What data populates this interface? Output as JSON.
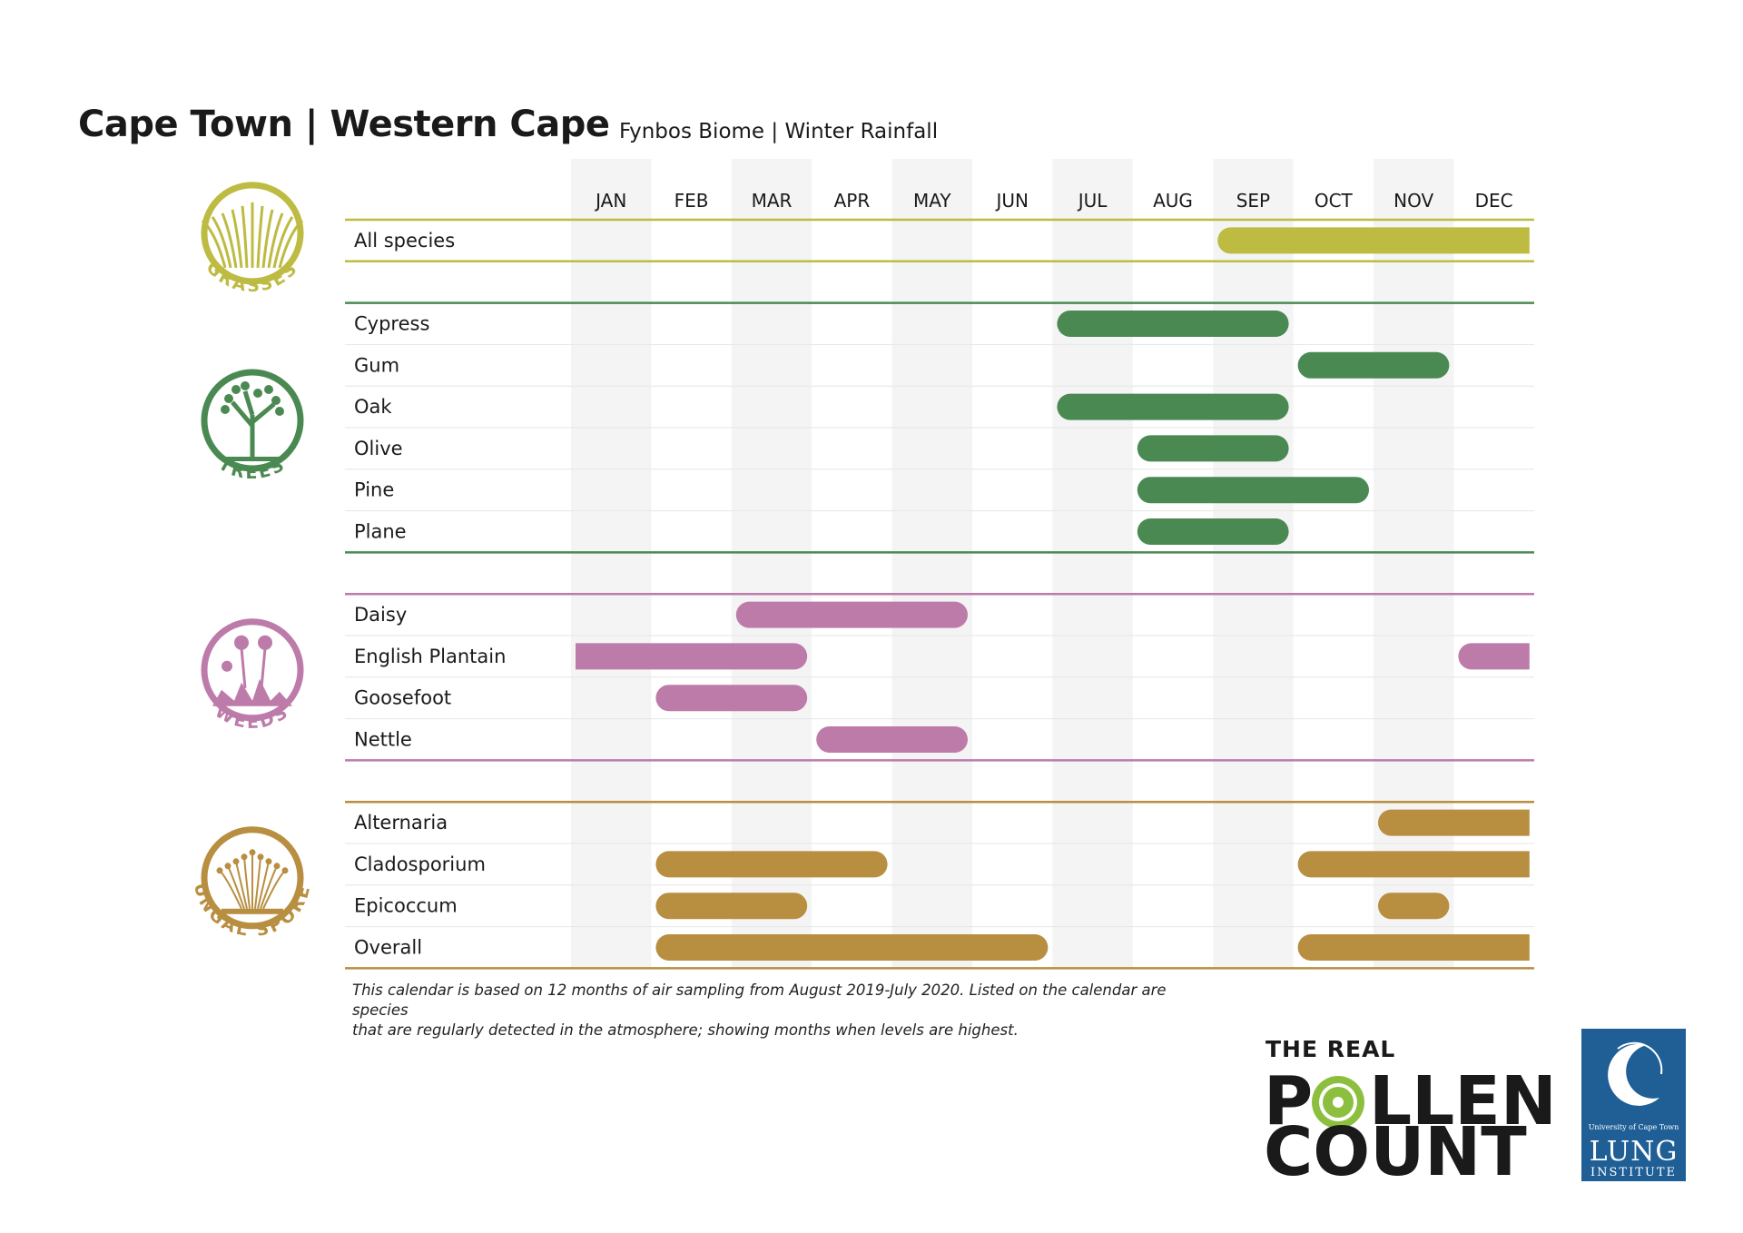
{
  "header": {
    "title": "Cape Town | Western Cape",
    "subtitle": "Fynbos Biome | Winter Rainfall"
  },
  "chart_data": {
    "type": "bar",
    "months": [
      "JAN",
      "FEB",
      "MAR",
      "APR",
      "MAY",
      "JUN",
      "JUL",
      "AUG",
      "SEP",
      "OCT",
      "NOV",
      "DEC"
    ],
    "groups": [
      {
        "name": "GRASSES",
        "color": "#bdbb42",
        "rows": [
          {
            "label": "All species",
            "ranges": [
              [
                "SEP",
                "DEC"
              ]
            ]
          }
        ]
      },
      {
        "name": "TREES",
        "color": "#4a8a52",
        "rows": [
          {
            "label": "Cypress",
            "ranges": [
              [
                "JUL",
                "SEP"
              ]
            ]
          },
          {
            "label": "Gum",
            "ranges": [
              [
                "OCT",
                "NOV"
              ]
            ]
          },
          {
            "label": "Oak",
            "ranges": [
              [
                "JUL",
                "SEP"
              ]
            ]
          },
          {
            "label": "Olive",
            "ranges": [
              [
                "AUG",
                "SEP"
              ]
            ]
          },
          {
            "label": "Pine",
            "ranges": [
              [
                "AUG",
                "OCT"
              ]
            ]
          },
          {
            "label": "Plane",
            "ranges": [
              [
                "AUG",
                "SEP"
              ]
            ]
          }
        ]
      },
      {
        "name": "WEEDS",
        "color": "#bd7baa",
        "rows": [
          {
            "label": "Daisy",
            "ranges": [
              [
                "MAR",
                "MAY"
              ]
            ]
          },
          {
            "label": "English Plantain",
            "ranges": [
              [
                "JAN",
                "MAR"
              ],
              [
                "DEC",
                "DEC"
              ]
            ]
          },
          {
            "label": "Goosefoot",
            "ranges": [
              [
                "FEB",
                "MAR"
              ]
            ]
          },
          {
            "label": "Nettle",
            "ranges": [
              [
                "APR",
                "MAY"
              ]
            ]
          }
        ]
      },
      {
        "name": "FUNGAL SPORES",
        "color": "#b88e40",
        "rows": [
          {
            "label": "Alternaria",
            "ranges": [
              [
                "NOV",
                "DEC"
              ]
            ]
          },
          {
            "label": "Cladosporium",
            "ranges": [
              [
                "FEB",
                "APR"
              ],
              [
                "OCT",
                "DEC"
              ]
            ]
          },
          {
            "label": "Epicoccum",
            "ranges": [
              [
                "FEB",
                "MAR"
              ],
              [
                "NOV",
                "NOV"
              ]
            ]
          },
          {
            "label": "Overall",
            "ranges": [
              [
                "FEB",
                "JUN"
              ],
              [
                "OCT",
                "DEC"
              ]
            ]
          }
        ]
      }
    ]
  },
  "footnote": {
    "line1": "This calendar is based on 12 months of air sampling from August 2019-July 2020. Listed on the calendar are species",
    "line2": "that are regularly detected in the atmosphere; showing months when levels are highest."
  },
  "logo": {
    "line1": "THE REAL",
    "line2_a": "P",
    "line2_b": "LLEN",
    "line3": "COUNT"
  },
  "uct_logo": {
    "small": "University of Cape Town",
    "big": "LUNG",
    "sub": "INSTITUTE"
  },
  "colors": {
    "grasses": "#bdbb42",
    "trees": "#4a8a52",
    "weeds": "#bd7baa",
    "fungal": "#b88e40",
    "band": "#f4f4f4"
  }
}
